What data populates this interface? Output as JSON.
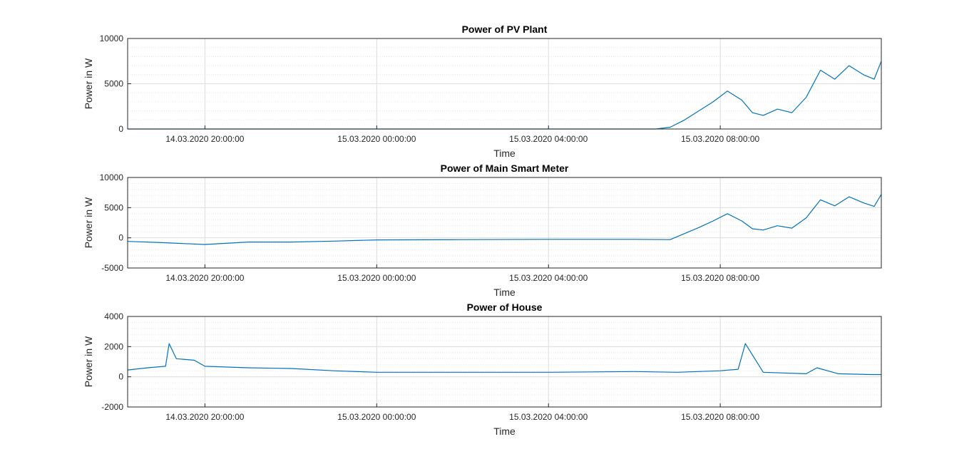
{
  "chart_data": [
    {
      "type": "line",
      "title": "Power of PV Plant",
      "xlabel": "Time",
      "ylabel": "Power in W",
      "xlim": [
        "14.03.2020 18:12:00",
        "15.03.2020 11:45:00"
      ],
      "ylim": [
        0,
        10000
      ],
      "yticks": [
        0,
        5000,
        10000
      ],
      "xticks": [
        "14.03.2020 20:00:00",
        "15.03.2020 00:00:00",
        "15.03.2020 04:00:00",
        "15.03.2020 08:00:00"
      ],
      "grid": "on (major and minor)",
      "color": "#0072bd",
      "series": [
        {
          "x": [
            "14.03.2020 18:12:00",
            "15.03.2020 06:30:00",
            "15.03.2020 06:50:00",
            "15.03.2020 07:10:00",
            "15.03.2020 07:30:00",
            "15.03.2020 07:50:00",
            "15.03.2020 08:10:00",
            "15.03.2020 08:30:00",
            "15.03.2020 08:45:00",
            "15.03.2020 09:00:00",
            "15.03.2020 09:20:00",
            "15.03.2020 09:40:00",
            "15.03.2020 10:00:00",
            "15.03.2020 10:20:00",
            "15.03.2020 10:40:00",
            "15.03.2020 11:00:00",
            "15.03.2020 11:20:00",
            "15.03.2020 11:35:00",
            "15.03.2020 11:45:00"
          ],
          "y": [
            0,
            0,
            200,
            1000,
            2000,
            3000,
            4200,
            3200,
            1800,
            1500,
            2200,
            1800,
            3500,
            6500,
            5500,
            7000,
            6000,
            5500,
            7500
          ]
        }
      ]
    },
    {
      "type": "line",
      "title": "Power of Main Smart Meter",
      "xlabel": "Time",
      "ylabel": "Power in W",
      "xlim": [
        "14.03.2020 18:12:00",
        "15.03.2020 11:45:00"
      ],
      "ylim": [
        -5000,
        10000
      ],
      "yticks": [
        -5000,
        0,
        5000,
        10000
      ],
      "xticks": [
        "14.03.2020 20:00:00",
        "15.03.2020 00:00:00",
        "15.03.2020 04:00:00",
        "15.03.2020 08:00:00"
      ],
      "grid": "on (major and minor)",
      "color": "#0072bd",
      "series": [
        {
          "x": [
            "14.03.2020 18:12:00",
            "14.03.2020 19:00:00",
            "14.03.2020 20:00:00",
            "14.03.2020 21:00:00",
            "14.03.2020 22:00:00",
            "14.03.2020 23:00:00",
            "15.03.2020 00:00:00",
            "15.03.2020 02:00:00",
            "15.03.2020 04:00:00",
            "15.03.2020 06:00:00",
            "15.03.2020 06:50:00",
            "15.03.2020 07:10:00",
            "15.03.2020 07:30:00",
            "15.03.2020 07:50:00",
            "15.03.2020 08:10:00",
            "15.03.2020 08:30:00",
            "15.03.2020 08:45:00",
            "15.03.2020 09:00:00",
            "15.03.2020 09:20:00",
            "15.03.2020 09:40:00",
            "15.03.2020 10:00:00",
            "15.03.2020 10:20:00",
            "15.03.2020 10:40:00",
            "15.03.2020 11:00:00",
            "15.03.2020 11:20:00",
            "15.03.2020 11:35:00",
            "15.03.2020 11:45:00"
          ],
          "y": [
            -600,
            -800,
            -1100,
            -700,
            -700,
            -550,
            -350,
            -300,
            -250,
            -250,
            -300,
            700,
            1700,
            2800,
            4000,
            2800,
            1500,
            1300,
            2000,
            1600,
            3300,
            6300,
            5300,
            6800,
            5800,
            5200,
            7200
          ]
        }
      ]
    },
    {
      "type": "line",
      "title": "Power of House",
      "xlabel": "Time",
      "ylabel": "Power in W",
      "xlim": [
        "14.03.2020 18:12:00",
        "15.03.2020 11:45:00"
      ],
      "ylim": [
        -2000,
        4000
      ],
      "yticks": [
        -2000,
        0,
        2000,
        4000
      ],
      "xticks": [
        "14.03.2020 20:00:00",
        "15.03.2020 00:00:00",
        "15.03.2020 04:00:00",
        "15.03.2020 08:00:00"
      ],
      "grid": "on (major and minor)",
      "color": "#0072bd",
      "series": [
        {
          "x": [
            "14.03.2020 18:12:00",
            "14.03.2020 18:40:00",
            "14.03.2020 19:05:00",
            "14.03.2020 19:10:00",
            "14.03.2020 19:20:00",
            "14.03.2020 19:45:00",
            "14.03.2020 20:00:00",
            "14.03.2020 21:00:00",
            "14.03.2020 22:00:00",
            "14.03.2020 23:00:00",
            "15.03.2020 00:00:00",
            "15.03.2020 02:00:00",
            "15.03.2020 04:00:00",
            "15.03.2020 06:00:00",
            "15.03.2020 07:00:00",
            "15.03.2020 08:00:00",
            "15.03.2020 08:25:00",
            "15.03.2020 08:35:00",
            "15.03.2020 09:00:00",
            "15.03.2020 10:00:00",
            "15.03.2020 10:15:00",
            "15.03.2020 10:45:00",
            "15.03.2020 11:30:00",
            "15.03.2020 11:45:00"
          ],
          "y": [
            450,
            600,
            700,
            2200,
            1200,
            1100,
            700,
            600,
            550,
            400,
            300,
            300,
            300,
            350,
            300,
            400,
            500,
            2200,
            300,
            200,
            600,
            200,
            150,
            150
          ]
        }
      ]
    }
  ]
}
